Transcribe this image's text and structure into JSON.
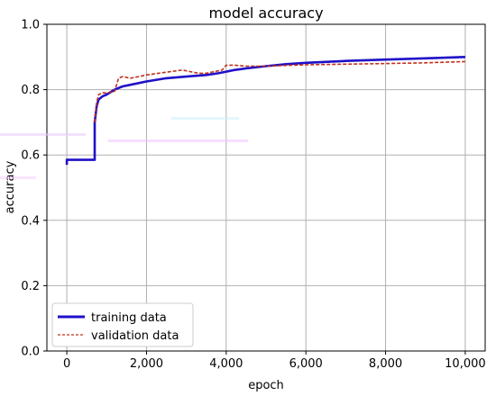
{
  "chart_data": {
    "type": "line",
    "title": "model accuracy",
    "xlabel": "epoch",
    "ylabel": "accuracy",
    "xlim": [
      -500,
      10500
    ],
    "ylim": [
      0.0,
      1.0
    ],
    "x_ticks": [
      0,
      2000,
      4000,
      6000,
      8000,
      10000
    ],
    "x_tick_labels": [
      "0",
      "2,000",
      "4,000",
      "6,000",
      "8,000",
      "10,000"
    ],
    "y_ticks": [
      0.0,
      0.2,
      0.4,
      0.6,
      0.8,
      1.0
    ],
    "y_tick_labels": [
      "0.0",
      "0.2",
      "0.4",
      "0.6",
      "0.8",
      "1.0"
    ],
    "grid": true,
    "legend_position": "lower-left",
    "series": [
      {
        "name": "training data",
        "color": "#1f10c8",
        "style": "solid",
        "x": [
          0,
          0,
          20,
          700,
          700,
          750,
          800,
          900,
          1000,
          1200,
          1400,
          1600,
          2000,
          2500,
          3000,
          3500,
          3800,
          4000,
          4200,
          4500,
          5000,
          5500,
          6000,
          7000,
          8000,
          9000,
          10000
        ],
        "y": [
          0.57,
          0.585,
          0.585,
          0.585,
          0.7,
          0.75,
          0.77,
          0.78,
          0.785,
          0.8,
          0.81,
          0.815,
          0.825,
          0.835,
          0.84,
          0.845,
          0.85,
          0.855,
          0.86,
          0.865,
          0.872,
          0.878,
          0.882,
          0.888,
          0.892,
          0.896,
          0.9
        ]
      },
      {
        "name": "validation data",
        "color": "#c0301c",
        "style": "dashed",
        "x": [
          700,
          750,
          800,
          900,
          1000,
          1200,
          1300,
          1400,
          1600,
          1800,
          2000,
          2300,
          2600,
          2900,
          3100,
          3300,
          3500,
          3700,
          3900,
          4000,
          4200,
          4500,
          4800,
          5000,
          5500,
          6000,
          7000,
          8000,
          9000,
          10000
        ],
        "y": [
          0.7,
          0.76,
          0.785,
          0.79,
          0.79,
          0.795,
          0.835,
          0.84,
          0.835,
          0.84,
          0.845,
          0.85,
          0.855,
          0.86,
          0.855,
          0.85,
          0.85,
          0.855,
          0.86,
          0.875,
          0.875,
          0.872,
          0.872,
          0.872,
          0.874,
          0.876,
          0.878,
          0.88,
          0.882,
          0.886
        ]
      }
    ]
  }
}
